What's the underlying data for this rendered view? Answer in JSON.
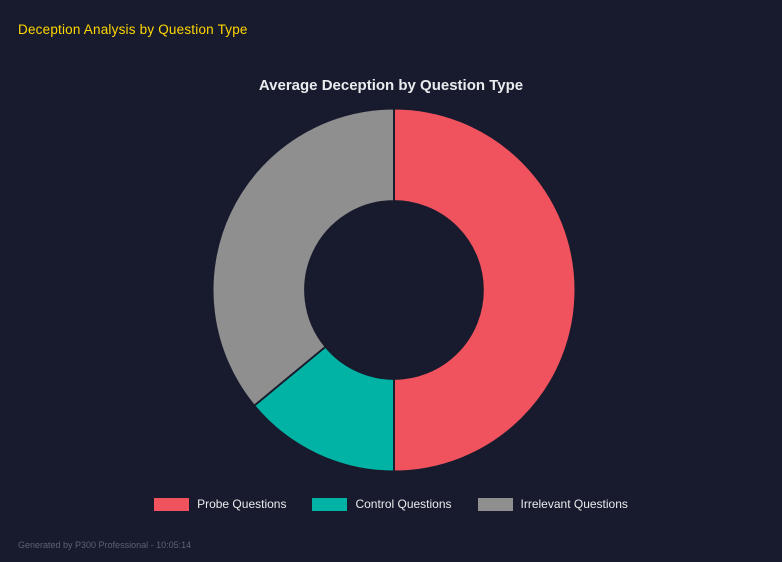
{
  "page": {
    "header": "Deception Analysis by Question Type",
    "footer": "Generated by P300 Professional - 10:05:14"
  },
  "chart_data": {
    "type": "pie",
    "subtype": "donut",
    "title": "Average Deception by Question Type",
    "categories": [
      "Probe Questions",
      "Control Questions",
      "Irrelevant Questions"
    ],
    "values": [
      50,
      14,
      36
    ],
    "values_unit": "% of ring (estimated from arc angles)",
    "colors": [
      "#f1535e",
      "#00b3a4",
      "#8f8f8f"
    ],
    "background": "#181b2d",
    "inner_radius_ratio": 0.49,
    "start_angle_deg": 0,
    "direction": "clockwise",
    "legend_position": "bottom"
  }
}
